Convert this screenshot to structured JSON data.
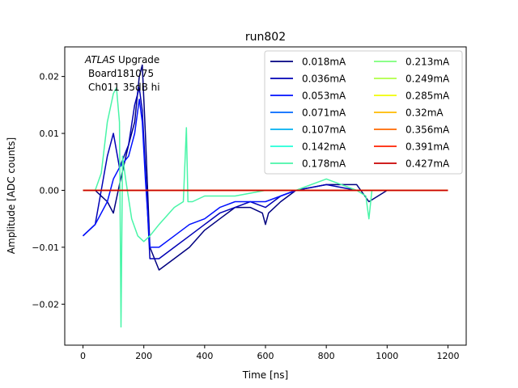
{
  "chart_data": {
    "type": "line",
    "title": "run802",
    "xlabel": "Time [ns]",
    "ylabel": "Amplitude [ADC counts]",
    "xlim": [
      -60,
      1260
    ],
    "ylim": [
      -0.0272,
      0.0252
    ],
    "xticks": [
      0,
      200,
      400,
      600,
      800,
      1000,
      1200
    ],
    "xtick_labels": [
      "0",
      "200",
      "400",
      "600",
      "800",
      "1000",
      "1200"
    ],
    "yticks": [
      -0.02,
      -0.01,
      0.0,
      0.01,
      0.02
    ],
    "ytick_labels": [
      "−0.02",
      "−0.01",
      "0.00",
      "0.01",
      "0.02"
    ],
    "grid": false,
    "legend_position": "top-right",
    "annotation": {
      "line1_italic": "ATLAS",
      "line1_rest": " Upgrade",
      "line2": "Board181075",
      "line3": "Ch011 35dB hi"
    },
    "series": [
      {
        "name": "0.018mA",
        "color": "#000080",
        "x": [
          0,
          40,
          80,
          100,
          120,
          150,
          170,
          185,
          195,
          205,
          220,
          250,
          300,
          350,
          400,
          450,
          500,
          550,
          590,
          600,
          610,
          650,
          700,
          800,
          900,
          940,
          1000,
          1100,
          1200
        ],
        "y": [
          0.0,
          0.0,
          -0.002,
          -0.004,
          0.001,
          0.008,
          0.012,
          0.02,
          0.022,
          0.01,
          -0.01,
          -0.014,
          -0.012,
          -0.01,
          -0.007,
          -0.005,
          -0.003,
          -0.003,
          -0.004,
          -0.006,
          -0.004,
          -0.002,
          0.0,
          0.001,
          0.001,
          -0.002,
          0.0,
          0.0,
          0.0
        ]
      },
      {
        "name": "0.036mA",
        "color": "#0000b5",
        "x": [
          0,
          40,
          80,
          100,
          120,
          150,
          170,
          185,
          195,
          205,
          220,
          250,
          300,
          350,
          400,
          450,
          500,
          550,
          600,
          650,
          700,
          800,
          900,
          1000,
          1100,
          1200
        ],
        "y": [
          -0.008,
          -0.006,
          0.006,
          0.01,
          0.004,
          0.008,
          0.015,
          0.018,
          0.014,
          0.004,
          -0.012,
          -0.012,
          -0.01,
          -0.008,
          -0.006,
          -0.004,
          -0.003,
          -0.002,
          -0.003,
          -0.001,
          0.0,
          0.001,
          0.0,
          0.0,
          0.0,
          0.0
        ]
      },
      {
        "name": "0.053mA",
        "color": "#0010ff",
        "x": [
          0,
          40,
          80,
          100,
          120,
          150,
          170,
          185,
          195,
          205,
          220,
          250,
          300,
          350,
          400,
          450,
          500,
          550,
          600,
          650,
          700,
          800,
          900,
          1000,
          1100,
          1200
        ],
        "y": [
          -0.008,
          -0.006,
          -0.002,
          0.002,
          0.004,
          0.006,
          0.01,
          0.016,
          0.012,
          0.002,
          -0.01,
          -0.01,
          -0.008,
          -0.006,
          -0.005,
          -0.003,
          -0.002,
          -0.002,
          -0.002,
          -0.001,
          0.0,
          0.0,
          0.0,
          0.0,
          0.0,
          0.0
        ]
      },
      {
        "name": "0.071mA",
        "color": "#0068ff",
        "x": [
          0,
          1200
        ],
        "y": [
          0.0,
          0.0
        ]
      },
      {
        "name": "0.107mA",
        "color": "#00b0f0",
        "x": [
          0,
          1200
        ],
        "y": [
          0.0,
          0.0
        ]
      },
      {
        "name": "0.142mA",
        "color": "#22ffd8",
        "x": [
          0,
          1200
        ],
        "y": [
          0.0,
          0.0
        ]
      },
      {
        "name": "0.178mA",
        "color": "#49f5a8",
        "x": [
          0,
          40,
          60,
          80,
          100,
          110,
          120,
          125,
          130,
          140,
          160,
          180,
          200,
          220,
          250,
          300,
          330,
          340,
          345,
          360,
          400,
          500,
          600,
          700,
          800,
          850,
          900,
          930,
          940,
          950,
          1000,
          1100,
          1200
        ],
        "y": [
          0.0,
          0.0,
          0.003,
          0.012,
          0.017,
          0.018,
          0.012,
          -0.024,
          0.006,
          0.002,
          -0.005,
          -0.008,
          -0.009,
          -0.008,
          -0.006,
          -0.003,
          -0.002,
          0.011,
          -0.002,
          -0.002,
          -0.001,
          -0.001,
          0.0,
          0.0,
          0.002,
          0.001,
          0.0,
          -0.001,
          -0.005,
          0.0,
          0.0,
          0.0,
          0.0
        ]
      },
      {
        "name": "0.213mA",
        "color": "#7cff79",
        "x": [
          0,
          1200
        ],
        "y": [
          0.0,
          0.0
        ]
      },
      {
        "name": "0.249mA",
        "color": "#b0ff46",
        "x": [
          0,
          1200
        ],
        "y": [
          0.0,
          0.0
        ]
      },
      {
        "name": "0.285mA",
        "color": "#f1fc06",
        "x": [
          0,
          1200
        ],
        "y": [
          0.0,
          0.0
        ]
      },
      {
        "name": "0.32mA",
        "color": "#ffb900",
        "x": [
          0,
          1200
        ],
        "y": [
          0.0,
          0.0
        ]
      },
      {
        "name": "0.356mA",
        "color": "#ff6800",
        "x": [
          0,
          1200
        ],
        "y": [
          0.0,
          0.0
        ]
      },
      {
        "name": "0.391mA",
        "color": "#ff2000",
        "x": [
          0,
          1200
        ],
        "y": [
          0.0,
          0.0
        ]
      },
      {
        "name": "0.427mA",
        "color": "#c80000",
        "x": [
          0,
          1200
        ],
        "y": [
          0.0,
          0.0
        ]
      }
    ]
  }
}
